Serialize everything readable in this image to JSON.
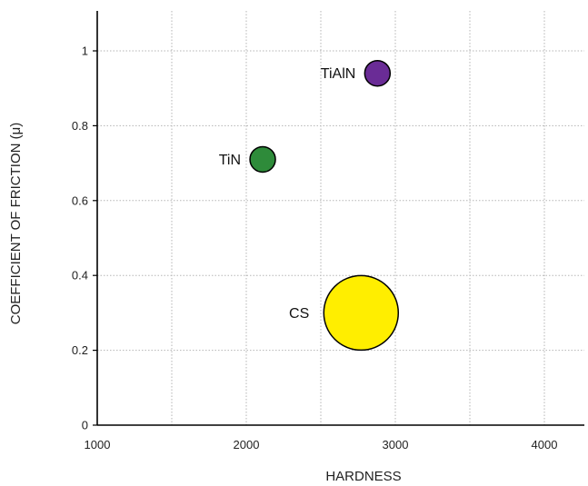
{
  "chart_data": {
    "type": "scatter",
    "title": "",
    "xlabel": "HARDNESS",
    "ylabel": "COEFFICIENT OF FRICTION (μ)",
    "xlim": [
      1000,
      4250
    ],
    "ylim": [
      0,
      1.12
    ],
    "x_ticks": [
      1000,
      2000,
      3000,
      4000
    ],
    "x_tick_labels": [
      "1000",
      "2000",
      "3000",
      "4000"
    ],
    "x_grid": [
      1500,
      2000,
      2500,
      3000,
      3500,
      4000
    ],
    "y_ticks": [
      0,
      0.2,
      0.4,
      0.6,
      0.8,
      1
    ],
    "y_tick_labels": [
      "0",
      "0.2",
      "0.4",
      "0.6",
      "0.8",
      "1"
    ],
    "grid": true,
    "grid_style": "dotted",
    "points": [
      {
        "label": "TiAlN",
        "x": 2880,
        "y": 0.94,
        "size": "small",
        "color": "#6a2c96"
      },
      {
        "label": "TiN",
        "x": 2110,
        "y": 0.71,
        "size": "small",
        "color": "#2e8b3a"
      },
      {
        "label": "CS",
        "x": 2770,
        "y": 0.3,
        "size": "large",
        "color": "#ffee00"
      }
    ]
  }
}
